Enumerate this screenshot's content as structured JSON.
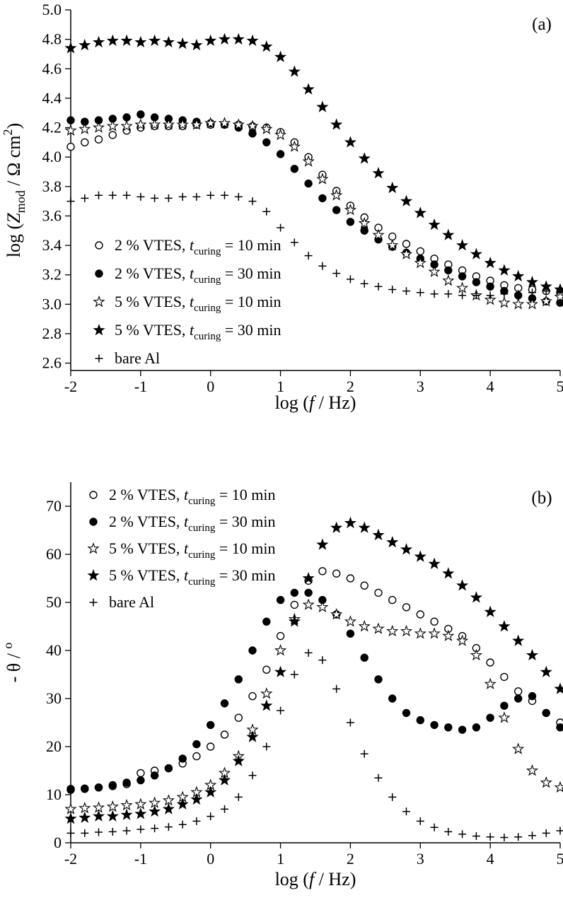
{
  "figure": {
    "background": "#ffffff",
    "ink": "#000000"
  },
  "chart_data": [
    {
      "panel_label": "(a)",
      "type": "scatter",
      "xlabel": "log (f / Hz)",
      "ylabel": "log (Zmod / Ω cm2)",
      "xlabel_segments": [
        {
          "t": "log ("
        },
        {
          "t": "f",
          "s": "i"
        },
        {
          "t": " / Hz)"
        }
      ],
      "ylabel_segments": [
        {
          "t": "log ("
        },
        {
          "t": "Z",
          "s": "i"
        },
        {
          "t": "mod",
          "s": "sub"
        },
        {
          "t": " / Ω cm"
        },
        {
          "t": "2",
          "s": "sup"
        },
        {
          "t": ")"
        }
      ],
      "xlim": [
        -2,
        5
      ],
      "ylim": [
        2.55,
        5.0
      ],
      "xticks": [
        "-2",
        "-1",
        "0",
        "1",
        "2",
        "3",
        "4",
        "5"
      ],
      "yticks": [
        "2.6",
        "2.8",
        "3.0",
        "3.2",
        "3.4",
        "3.6",
        "3.8",
        "4.0",
        "4.2",
        "4.4",
        "4.6",
        "4.8",
        "5.0"
      ],
      "grid": false,
      "legend_position": "lower-left",
      "x": [
        -2,
        -1.8,
        -1.6,
        -1.4,
        -1.2,
        -1,
        -0.8,
        -0.6,
        -0.4,
        -0.2,
        0,
        0.2,
        0.4,
        0.6,
        0.8,
        1,
        1.2,
        1.4,
        1.6,
        1.8,
        2,
        2.2,
        2.4,
        2.6,
        2.8,
        3,
        3.2,
        3.4,
        3.6,
        3.8,
        4,
        4.2,
        4.4,
        4.6,
        4.8,
        5
      ],
      "series": [
        {
          "name": "2 % VTES, t_curing = 10 min",
          "marker": "circle-open",
          "label_segments": [
            {
              "t": "2 % VTES, "
            },
            {
              "t": "t",
              "s": "i"
            },
            {
              "t": "curing",
              "s": "sub"
            },
            {
              "t": " = 10 min"
            }
          ],
          "y": [
            4.07,
            4.1,
            4.12,
            4.15,
            4.18,
            4.2,
            4.21,
            4.21,
            4.21,
            4.22,
            4.22,
            4.22,
            4.22,
            4.21,
            4.2,
            4.17,
            4.1,
            4.0,
            3.88,
            3.77,
            3.67,
            3.59,
            3.52,
            3.46,
            3.41,
            3.36,
            3.31,
            3.27,
            3.23,
            3.19,
            3.16,
            3.13,
            3.11,
            3.1,
            3.09,
            3.08
          ]
        },
        {
          "name": "2 % VTES, t_curing = 30 min",
          "marker": "circle-filled",
          "label_segments": [
            {
              "t": "2 % VTES, "
            },
            {
              "t": "t",
              "s": "i"
            },
            {
              "t": "curing",
              "s": "sub"
            },
            {
              "t": " = 30 min"
            }
          ],
          "y": [
            4.25,
            4.24,
            4.25,
            4.26,
            4.27,
            4.29,
            4.27,
            4.26,
            4.25,
            4.24,
            4.23,
            4.22,
            4.2,
            4.16,
            4.1,
            4.02,
            3.92,
            3.82,
            3.72,
            3.64,
            3.56,
            3.5,
            3.44,
            3.39,
            3.35,
            3.31,
            3.27,
            3.23,
            3.19,
            3.15,
            3.12,
            3.09,
            3.06,
            3.04,
            3.02,
            3.01
          ]
        },
        {
          "name": "5 % VTES, t_curing = 10 min",
          "marker": "star-open",
          "label_segments": [
            {
              "t": "5 % VTES, "
            },
            {
              "t": "t",
              "s": "i"
            },
            {
              "t": "curing",
              "s": "sub"
            },
            {
              "t": " = 10 min"
            }
          ],
          "y": [
            4.18,
            4.19,
            4.2,
            4.21,
            4.21,
            4.22,
            4.22,
            4.22,
            4.22,
            4.22,
            4.23,
            4.23,
            4.22,
            4.21,
            4.19,
            4.15,
            4.07,
            3.97,
            3.85,
            3.74,
            3.64,
            3.55,
            3.47,
            3.4,
            3.34,
            3.28,
            3.22,
            3.16,
            3.11,
            3.06,
            3.03,
            3.01,
            3.0,
            3.0,
            3.02,
            3.05
          ]
        },
        {
          "name": "5 % VTES, t_curing = 30 min",
          "marker": "star-filled",
          "label_segments": [
            {
              "t": "5 % VTES, "
            },
            {
              "t": "t",
              "s": "i"
            },
            {
              "t": "curing",
              "s": "sub"
            },
            {
              "t": " = 30 min"
            }
          ],
          "y": [
            4.74,
            4.76,
            4.78,
            4.79,
            4.79,
            4.78,
            4.79,
            4.78,
            4.77,
            4.76,
            4.79,
            4.8,
            4.8,
            4.79,
            4.75,
            4.68,
            4.58,
            4.46,
            4.34,
            4.22,
            4.1,
            3.99,
            3.89,
            3.79,
            3.7,
            3.62,
            3.54,
            3.47,
            3.4,
            3.34,
            3.28,
            3.23,
            3.19,
            3.15,
            3.12,
            3.1
          ]
        },
        {
          "name": "bare Al",
          "marker": "plus",
          "label_segments": [
            {
              "t": "bare Al"
            }
          ],
          "y": [
            3.7,
            3.72,
            3.74,
            3.74,
            3.74,
            3.73,
            3.72,
            3.72,
            3.73,
            3.73,
            3.74,
            3.74,
            3.73,
            3.7,
            3.63,
            3.52,
            3.42,
            3.33,
            3.26,
            3.21,
            3.17,
            3.14,
            3.12,
            3.1,
            3.09,
            3.08,
            3.07,
            3.07,
            3.06,
            3.06,
            3.06,
            3.07,
            3.07,
            3.08,
            3.09,
            3.1
          ]
        }
      ]
    },
    {
      "panel_label": "(b)",
      "type": "scatter",
      "xlabel": "log (f / Hz)",
      "ylabel": "- θ / °",
      "xlabel_segments": [
        {
          "t": "log ("
        },
        {
          "t": "f",
          "s": "i"
        },
        {
          "t": " / Hz)"
        }
      ],
      "ylabel_segments": [
        {
          "t": "- θ / "
        },
        {
          "t": "o",
          "s": "sup"
        }
      ],
      "xlim": [
        -2,
        5
      ],
      "ylim": [
        0,
        75
      ],
      "xticks": [
        "-2",
        "-1",
        "0",
        "1",
        "2",
        "3",
        "4",
        "5"
      ],
      "yticks": [
        "0",
        "10",
        "20",
        "30",
        "40",
        "50",
        "60",
        "70"
      ],
      "grid": false,
      "legend_position": "upper-left",
      "x": [
        -2,
        -1.8,
        -1.6,
        -1.4,
        -1.2,
        -1,
        -0.8,
        -0.6,
        -0.4,
        -0.2,
        0,
        0.2,
        0.4,
        0.6,
        0.8,
        1,
        1.2,
        1.4,
        1.6,
        1.8,
        2,
        2.2,
        2.4,
        2.6,
        2.8,
        3,
        3.2,
        3.4,
        3.6,
        3.8,
        4,
        4.2,
        4.4,
        4.6,
        4.8,
        5
      ],
      "series": [
        {
          "name": "2 % VTES, t_curing = 10 min",
          "marker": "circle-open",
          "label_segments": [
            {
              "t": "2 % VTES, "
            },
            {
              "t": "t",
              "s": "i"
            },
            {
              "t": "curing",
              "s": "sub"
            },
            {
              "t": " = 10 min"
            }
          ],
          "y": [
            11.0,
            11.2,
            11.5,
            11.8,
            12.2,
            14.5,
            15.0,
            15.5,
            16.5,
            18.0,
            20.0,
            22.5,
            26.0,
            30.5,
            36.0,
            43.0,
            49.5,
            54.5,
            56.5,
            56.0,
            55.0,
            53.5,
            52.0,
            50.5,
            49.0,
            47.5,
            46.0,
            44.5,
            43.0,
            40.5,
            37.5,
            34.5,
            31.5,
            29.5,
            27.0,
            25.0
          ]
        },
        {
          "name": "2 % VTES, t_curing = 30 min",
          "marker": "circle-filled",
          "label_segments": [
            {
              "t": "2 % VTES, "
            },
            {
              "t": "t",
              "s": "i"
            },
            {
              "t": "curing",
              "s": "sub"
            },
            {
              "t": " = 30 min"
            }
          ],
          "y": [
            11.2,
            11.3,
            11.5,
            12.0,
            12.5,
            13.0,
            14.0,
            15.5,
            17.5,
            20.5,
            24.5,
            29.0,
            34.0,
            40.0,
            46.0,
            50.5,
            52.0,
            52.0,
            50.5,
            47.5,
            43.5,
            38.5,
            34.0,
            30.0,
            27.0,
            25.5,
            24.5,
            24.0,
            23.5,
            24.0,
            26.0,
            28.5,
            30.0,
            30.5,
            27.0,
            24.0
          ]
        },
        {
          "name": "5 % VTES, t_curing = 10 min",
          "marker": "star-open",
          "label_segments": [
            {
              "t": "5 % VTES, "
            },
            {
              "t": "t",
              "s": "i"
            },
            {
              "t": "curing",
              "s": "sub"
            },
            {
              "t": " = 10 min"
            }
          ],
          "y": [
            7.0,
            7.2,
            7.3,
            7.5,
            7.8,
            8.0,
            8.3,
            8.8,
            9.5,
            10.5,
            12.0,
            14.5,
            18.0,
            23.5,
            31.0,
            40.0,
            46.5,
            49.5,
            49.0,
            47.5,
            46.0,
            45.0,
            44.5,
            44.0,
            44.0,
            43.5,
            43.5,
            43.0,
            42.0,
            39.0,
            33.0,
            26.0,
            19.5,
            15.0,
            12.5,
            11.5
          ]
        },
        {
          "name": "5 % VTES, t_curing = 30 min",
          "marker": "star-filled",
          "label_segments": [
            {
              "t": "5 % VTES, "
            },
            {
              "t": "t",
              "s": "i"
            },
            {
              "t": "curing",
              "s": "sub"
            },
            {
              "t": " = 30 min"
            }
          ],
          "y": [
            5.0,
            5.2,
            5.5,
            5.5,
            5.8,
            6.0,
            6.5,
            7.0,
            8.0,
            9.0,
            10.5,
            13.0,
            17.0,
            22.0,
            28.5,
            35.5,
            46.0,
            55.0,
            62.0,
            65.5,
            66.5,
            65.5,
            64.0,
            62.5,
            61.0,
            59.5,
            58.0,
            56.0,
            53.5,
            51.0,
            48.0,
            45.0,
            42.0,
            39.0,
            35.5,
            32.0
          ]
        },
        {
          "name": "bare Al",
          "marker": "plus",
          "label_segments": [
            {
              "t": "bare Al"
            }
          ],
          "y": [
            2.0,
            2.0,
            2.2,
            2.3,
            2.5,
            2.8,
            3.0,
            3.3,
            3.8,
            4.5,
            5.5,
            7.0,
            9.5,
            14.0,
            20.0,
            27.5,
            35.0,
            39.5,
            38.0,
            32.0,
            25.0,
            18.5,
            13.5,
            9.5,
            6.5,
            4.5,
            3.2,
            2.3,
            1.8,
            1.4,
            1.2,
            1.1,
            1.2,
            1.5,
            2.0,
            2.5
          ]
        }
      ]
    }
  ]
}
